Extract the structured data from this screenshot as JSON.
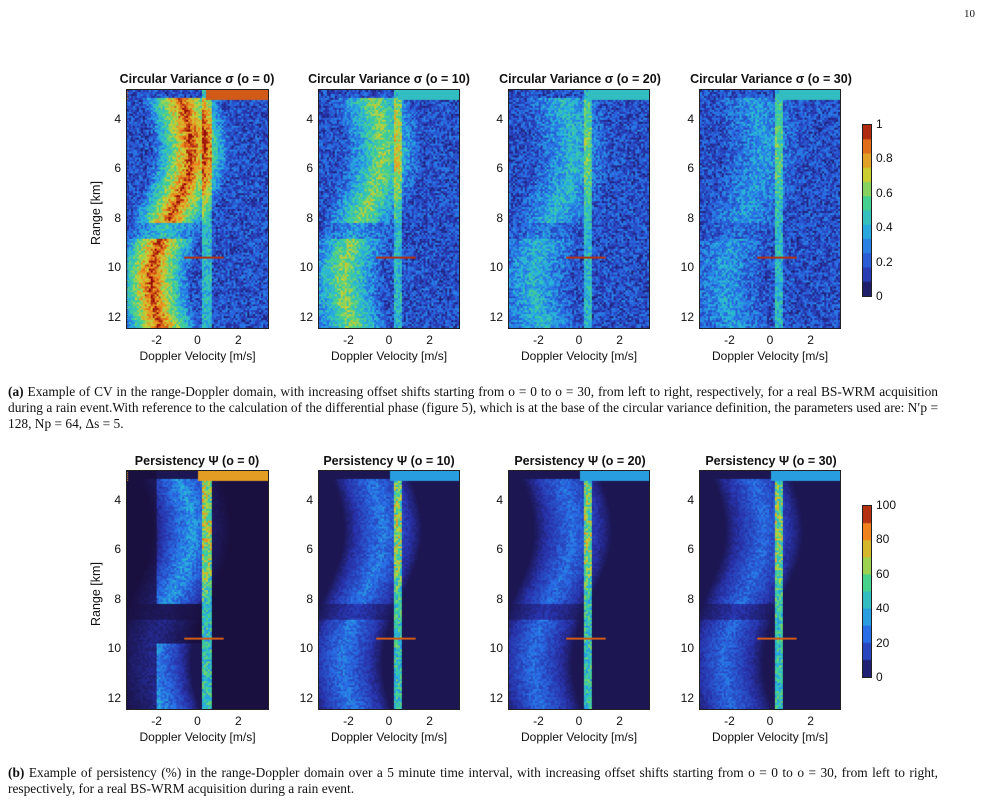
{
  "page_number": "10",
  "figure_a": {
    "panels": [
      {
        "title": "Circular Variance σ (o = 0)"
      },
      {
        "title": "Circular Variance σ (o = 10)"
      },
      {
        "title": "Circular Variance σ (o = 20)"
      },
      {
        "title": "Circular Variance σ (o = 30)"
      }
    ],
    "ylabel": "Range [km]",
    "xlabel": "Doppler Velocity [m/s]",
    "yticks": [
      "4",
      "6",
      "8",
      "10",
      "12"
    ],
    "xticks": [
      "-2",
      "0",
      "2"
    ],
    "colorbar_ticks": [
      "1",
      "0.8",
      "0.6",
      "0.4",
      "0.2",
      "0"
    ],
    "caption_label": "(a)",
    "caption_text": "Example of CV in the range-Doppler domain, with increasing offset shifts starting from o = 0 to o = 30, from left to right, respectively, for a real BS-WRM acquisition during a rain event.With reference to the calculation of the differential phase (figure 5), which is at the base of the circular variance definition, the parameters used are: N′p = 128, Np = 64, Δs = 5."
  },
  "figure_b": {
    "panels": [
      {
        "title": "Persistency Ψ (o = 0)"
      },
      {
        "title": "Persistency Ψ (o = 10)"
      },
      {
        "title": "Persistency Ψ (o = 20)"
      },
      {
        "title": "Persistency Ψ (o = 30)"
      }
    ],
    "ylabel": "Range [km]",
    "xlabel": "Doppler Velocity [m/s]",
    "yticks": [
      "4",
      "6",
      "8",
      "10",
      "12"
    ],
    "xticks": [
      "-2",
      "0",
      "2"
    ],
    "colorbar_ticks": [
      "100",
      "80",
      "60",
      "40",
      "20",
      "0"
    ],
    "caption_label": "(b)",
    "caption_text": "Example of persistency (%) in the range-Doppler domain over a 5 minute time interval, with increasing offset shifts starting from o = 0 to o = 30, from left to right, respectively, for a real BS-WRM acquisition during a rain event."
  },
  "chart_data": [
    {
      "type": "heatmap",
      "title": "Circular Variance σ (o = 0)",
      "xlabel": "Doppler Velocity [m/s]",
      "ylabel": "Range [km]",
      "xlim": [
        -3.5,
        3.5
      ],
      "ylim": [
        12.5,
        2.8
      ],
      "colorbar_range": [
        0,
        1
      ]
    },
    {
      "type": "heatmap",
      "title": "Circular Variance σ (o = 10)",
      "xlabel": "Doppler Velocity [m/s]",
      "ylabel": "Range [km]",
      "xlim": [
        -3.5,
        3.5
      ],
      "ylim": [
        12.5,
        2.8
      ],
      "colorbar_range": [
        0,
        1
      ]
    },
    {
      "type": "heatmap",
      "title": "Circular Variance σ (o = 20)",
      "xlabel": "Doppler Velocity [m/s]",
      "ylabel": "Range [km]",
      "xlim": [
        -3.5,
        3.5
      ],
      "ylim": [
        12.5,
        2.8
      ],
      "colorbar_range": [
        0,
        1
      ]
    },
    {
      "type": "heatmap",
      "title": "Circular Variance σ (o = 30)",
      "xlabel": "Doppler Velocity [m/s]",
      "ylabel": "Range [km]",
      "xlim": [
        -3.5,
        3.5
      ],
      "ylim": [
        12.5,
        2.8
      ],
      "colorbar_range": [
        0,
        1
      ]
    },
    {
      "type": "heatmap",
      "title": "Persistency Ψ (o = 0)",
      "xlabel": "Doppler Velocity [m/s]",
      "ylabel": "Range [km]",
      "xlim": [
        -3.5,
        3.5
      ],
      "ylim": [
        12.5,
        2.8
      ],
      "colorbar_range": [
        0,
        100
      ]
    },
    {
      "type": "heatmap",
      "title": "Persistency Ψ (o = 10)",
      "xlabel": "Doppler Velocity [m/s]",
      "ylabel": "Range [km]",
      "xlim": [
        -3.5,
        3.5
      ],
      "ylim": [
        12.5,
        2.8
      ],
      "colorbar_range": [
        0,
        100
      ]
    },
    {
      "type": "heatmap",
      "title": "Persistency Ψ (o = 20)",
      "xlabel": "Doppler Velocity [m/s]",
      "ylabel": "Range [km]",
      "xlim": [
        -3.5,
        3.5
      ],
      "ylim": [
        12.5,
        2.8
      ],
      "colorbar_range": [
        0,
        100
      ]
    },
    {
      "type": "heatmap",
      "title": "Persistency Ψ (o = 30)",
      "xlabel": "Doppler Velocity [m/s]",
      "ylabel": "Range [km]",
      "xlim": [
        -3.5,
        3.5
      ],
      "ylim": [
        12.5,
        2.8
      ],
      "colorbar_range": [
        0,
        100
      ]
    }
  ]
}
